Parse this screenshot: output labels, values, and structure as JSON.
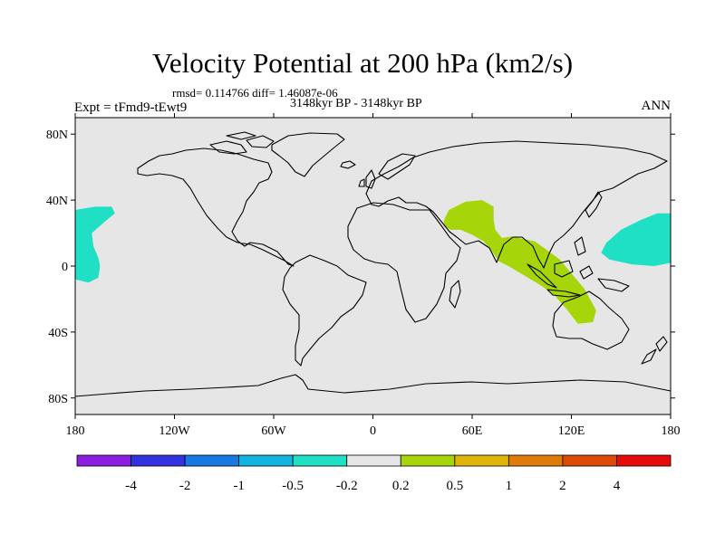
{
  "header": {
    "title": "Velocity Potential at 200 hPa (km2/s)",
    "stats": "rmsd= 0.114766 diff= 1.46087e-06",
    "experiment": "Expt = tFmd9-tEwt9",
    "period": "3148kyr BP - 3148kyr BP",
    "season": "ANN"
  },
  "map": {
    "projection": "cylindrical equidistant",
    "lon_range": [
      -180,
      180
    ],
    "lat_range": [
      -90,
      90
    ],
    "background_color": "#e6e6e6",
    "coastline_color": "#000000",
    "x_ticks": [
      {
        "lon": -180,
        "label": "180"
      },
      {
        "lon": -120,
        "label": "120W"
      },
      {
        "lon": -60,
        "label": "60W"
      },
      {
        "lon": 0,
        "label": "0"
      },
      {
        "lon": 60,
        "label": "60E"
      },
      {
        "lon": 120,
        "label": "120E"
      },
      {
        "lon": 180,
        "label": "180"
      }
    ],
    "y_ticks": [
      {
        "lat": 80,
        "label": "80N"
      },
      {
        "lat": 40,
        "label": "40N"
      },
      {
        "lat": 0,
        "label": "0"
      },
      {
        "lat": -40,
        "label": "40S"
      },
      {
        "lat": -80,
        "label": "80S"
      }
    ],
    "anomaly_regions": [
      {
        "name": "east-pacific-negative",
        "category": "-0.5 to -0.2",
        "color": "#1fe0c4",
        "lonlat": [
          [
            -180,
            34
          ],
          [
            -168,
            36
          ],
          [
            -158,
            36
          ],
          [
            -156,
            32
          ],
          [
            -162,
            27
          ],
          [
            -170,
            20
          ],
          [
            -169,
            12
          ],
          [
            -166,
            5
          ],
          [
            -165,
            0
          ],
          [
            -166,
            -7
          ],
          [
            -172,
            -10
          ],
          [
            -180,
            -8
          ]
        ]
      },
      {
        "name": "west-pacific-negative",
        "category": "-0.5 to -0.2",
        "color": "#1fe0c4",
        "lonlat": [
          [
            180,
            32
          ],
          [
            172,
            32
          ],
          [
            162,
            28
          ],
          [
            150,
            22
          ],
          [
            141,
            14
          ],
          [
            138,
            8
          ],
          [
            143,
            4
          ],
          [
            157,
            1
          ],
          [
            170,
            0
          ],
          [
            180,
            2
          ]
        ]
      },
      {
        "name": "indian-ocean-positive",
        "category": "0.2 to 0.5",
        "color": "#a6d609",
        "lonlat": [
          [
            43,
            28
          ],
          [
            46,
            34
          ],
          [
            56,
            39
          ],
          [
            66,
            40
          ],
          [
            73,
            36
          ],
          [
            73,
            28
          ],
          [
            74,
            22
          ],
          [
            78,
            17
          ],
          [
            84,
            18
          ],
          [
            98,
            15
          ],
          [
            113,
            4
          ],
          [
            128,
            -14
          ],
          [
            135,
            -27
          ],
          [
            133,
            -34
          ],
          [
            124,
            -35
          ],
          [
            117,
            -26
          ],
          [
            110,
            -18
          ],
          [
            102,
            -12
          ],
          [
            92,
            -6
          ],
          [
            82,
            0
          ],
          [
            76,
            3
          ],
          [
            72,
            9
          ],
          [
            67,
            15
          ],
          [
            60,
            19
          ],
          [
            53,
            22
          ],
          [
            47,
            22
          ],
          [
            43,
            24
          ]
        ]
      }
    ]
  },
  "colorbar": {
    "colors": [
      "#8c1ee0",
      "#3232e0",
      "#1678e0",
      "#12b4e0",
      "#1fe0c4",
      "#e6e6e6",
      "#a6d609",
      "#e0b409",
      "#e07a09",
      "#e04a09",
      "#e60a0a"
    ],
    "labels": [
      "-4",
      "-2",
      "-1",
      "-0.5",
      "-0.2",
      "0.2",
      "0.5",
      "1",
      "2",
      "4"
    ]
  }
}
